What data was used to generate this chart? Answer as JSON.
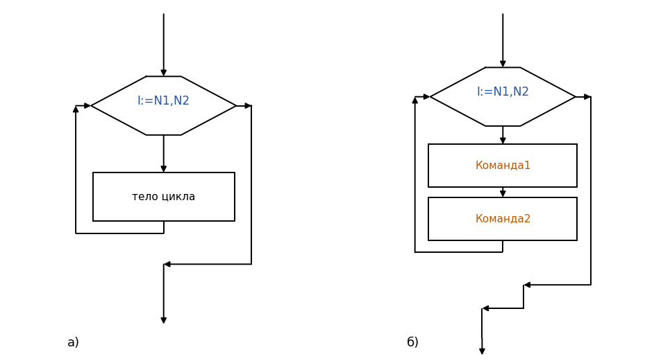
{
  "bg_color": "#ffffff",
  "label_a": "а)",
  "label_b": "б)",
  "hex_text": "I:=N1,N2",
  "hex_text_color": "#2255aa",
  "box1_text": "тело цикла",
  "box1_color": "#000000",
  "box2a_text": "Команда1",
  "box2b_text": "Команда2",
  "box_text_color": "#c05800",
  "line_color": "#000000",
  "lw": 1.4
}
